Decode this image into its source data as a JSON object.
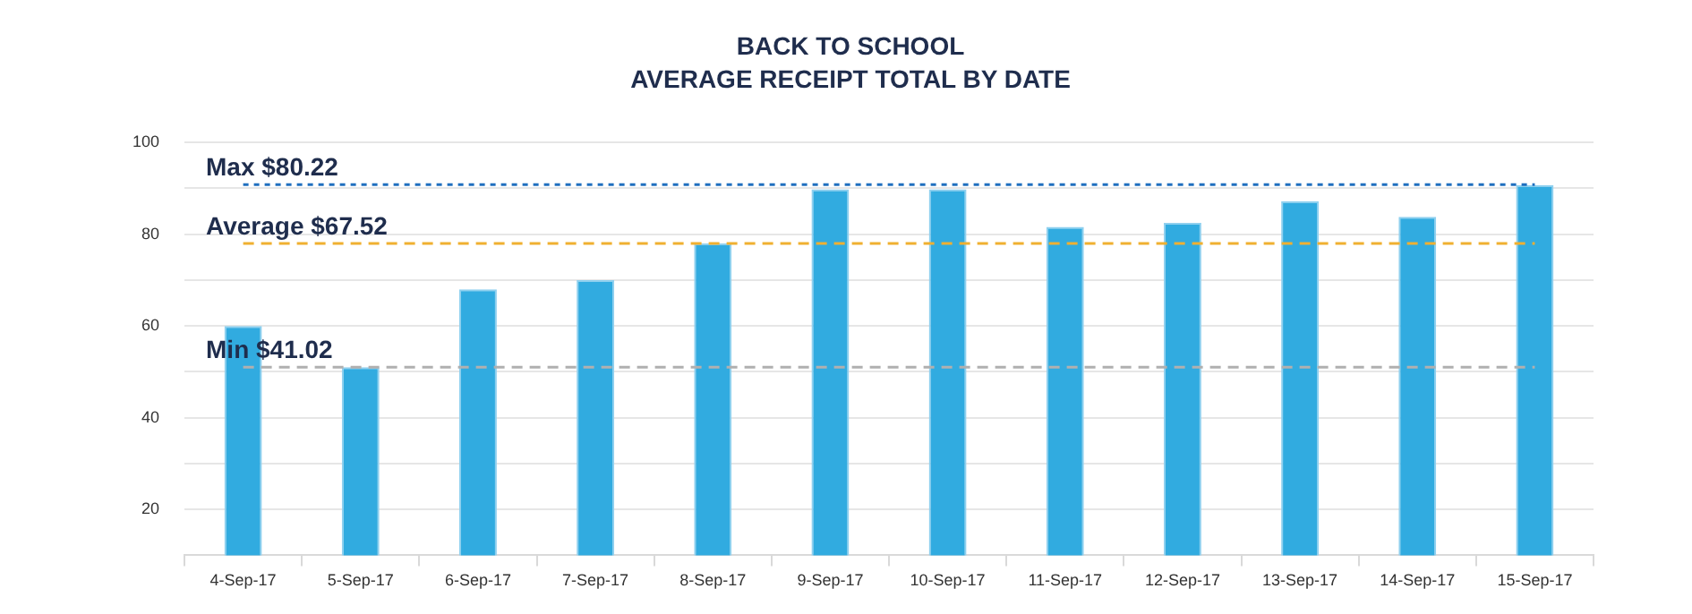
{
  "chart_data": {
    "type": "bar",
    "title": "BACK TO SCHOOL",
    "subtitle": "AVERAGE RECEIPT TOTAL BY DATE",
    "categories": [
      "4-Sep-17",
      "5-Sep-17",
      "6-Sep-17",
      "7-Sep-17",
      "8-Sep-17",
      "9-Sep-17",
      "10-Sep-17",
      "11-Sep-17",
      "12-Sep-17",
      "13-Sep-17",
      "14-Sep-17",
      "15-Sep-17"
    ],
    "values": [
      60,
      51,
      68,
      70,
      78,
      89.8,
      89.8,
      81.6,
      82.5,
      87.2,
      83.8,
      90.7
    ],
    "color": "#31abe0",
    "ylim": [
      10,
      100
    ],
    "yticks": [
      {
        "value": 10,
        "label": null
      },
      20,
      {
        "value": 30,
        "label": null
      },
      40,
      {
        "value": 50,
        "label": null
      },
      60,
      {
        "value": 70,
        "label": null
      },
      80,
      {
        "value": 90,
        "label": null
      },
      100
    ],
    "grid": "y",
    "ref_lines": [
      {
        "axis": "y",
        "value": 90.8,
        "label": "Max $80.22",
        "color": "#1f6fbf",
        "line_style": "dotted"
      },
      {
        "axis": "y",
        "value": 78,
        "label": "Average $67.52",
        "color": "#f0b030",
        "line_style": "dashed"
      },
      {
        "axis": "y",
        "value": 51,
        "label": "Min $41.02",
        "color": "#b0b0b0",
        "line_style": "dashed"
      }
    ]
  }
}
